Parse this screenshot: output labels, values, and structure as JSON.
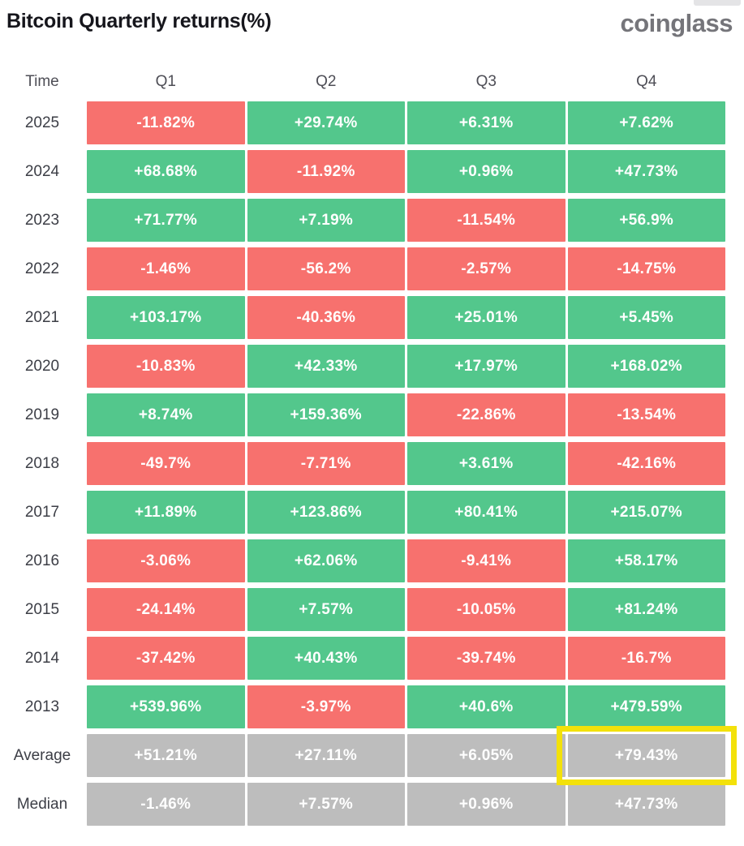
{
  "title": "Bitcoin Quarterly returns(%)",
  "logo_text": "coinglass",
  "colors": {
    "positive": "#53c78c",
    "negative": "#f7716e",
    "neutral": "#bdbdbd",
    "highlight": "#f3e10a",
    "title": "#16161c",
    "logo": "#75757a",
    "header_text": "#4e4e56",
    "label_text": "#3c3e46",
    "cell_text": "#ffffff"
  },
  "table": {
    "headers": [
      "Time",
      "Q1",
      "Q2",
      "Q3",
      "Q4"
    ],
    "rows": [
      {
        "label": "2025",
        "cells": [
          {
            "value": "-11.82%",
            "sign": "neg"
          },
          {
            "value": "+29.74%",
            "sign": "pos"
          },
          {
            "value": "+6.31%",
            "sign": "pos"
          },
          {
            "value": "+7.62%",
            "sign": "pos"
          }
        ]
      },
      {
        "label": "2024",
        "cells": [
          {
            "value": "+68.68%",
            "sign": "pos"
          },
          {
            "value": "-11.92%",
            "sign": "neg"
          },
          {
            "value": "+0.96%",
            "sign": "pos"
          },
          {
            "value": "+47.73%",
            "sign": "pos"
          }
        ]
      },
      {
        "label": "2023",
        "cells": [
          {
            "value": "+71.77%",
            "sign": "pos"
          },
          {
            "value": "+7.19%",
            "sign": "pos"
          },
          {
            "value": "-11.54%",
            "sign": "neg"
          },
          {
            "value": "+56.9%",
            "sign": "pos"
          }
        ]
      },
      {
        "label": "2022",
        "cells": [
          {
            "value": "-1.46%",
            "sign": "neg"
          },
          {
            "value": "-56.2%",
            "sign": "neg"
          },
          {
            "value": "-2.57%",
            "sign": "neg"
          },
          {
            "value": "-14.75%",
            "sign": "neg"
          }
        ]
      },
      {
        "label": "2021",
        "cells": [
          {
            "value": "+103.17%",
            "sign": "pos"
          },
          {
            "value": "-40.36%",
            "sign": "neg"
          },
          {
            "value": "+25.01%",
            "sign": "pos"
          },
          {
            "value": "+5.45%",
            "sign": "pos"
          }
        ]
      },
      {
        "label": "2020",
        "cells": [
          {
            "value": "-10.83%",
            "sign": "neg"
          },
          {
            "value": "+42.33%",
            "sign": "pos"
          },
          {
            "value": "+17.97%",
            "sign": "pos"
          },
          {
            "value": "+168.02%",
            "sign": "pos"
          }
        ]
      },
      {
        "label": "2019",
        "cells": [
          {
            "value": "+8.74%",
            "sign": "pos"
          },
          {
            "value": "+159.36%",
            "sign": "pos"
          },
          {
            "value": "-22.86%",
            "sign": "neg"
          },
          {
            "value": "-13.54%",
            "sign": "neg"
          }
        ]
      },
      {
        "label": "2018",
        "cells": [
          {
            "value": "-49.7%",
            "sign": "neg"
          },
          {
            "value": "-7.71%",
            "sign": "neg"
          },
          {
            "value": "+3.61%",
            "sign": "pos"
          },
          {
            "value": "-42.16%",
            "sign": "neg"
          }
        ]
      },
      {
        "label": "2017",
        "cells": [
          {
            "value": "+11.89%",
            "sign": "pos"
          },
          {
            "value": "+123.86%",
            "sign": "pos"
          },
          {
            "value": "+80.41%",
            "sign": "pos"
          },
          {
            "value": "+215.07%",
            "sign": "pos"
          }
        ]
      },
      {
        "label": "2016",
        "cells": [
          {
            "value": "-3.06%",
            "sign": "neg"
          },
          {
            "value": "+62.06%",
            "sign": "pos"
          },
          {
            "value": "-9.41%",
            "sign": "neg"
          },
          {
            "value": "+58.17%",
            "sign": "pos"
          }
        ]
      },
      {
        "label": "2015",
        "cells": [
          {
            "value": "-24.14%",
            "sign": "neg"
          },
          {
            "value": "+7.57%",
            "sign": "pos"
          },
          {
            "value": "-10.05%",
            "sign": "neg"
          },
          {
            "value": "+81.24%",
            "sign": "pos"
          }
        ]
      },
      {
        "label": "2014",
        "cells": [
          {
            "value": "-37.42%",
            "sign": "neg"
          },
          {
            "value": "+40.43%",
            "sign": "pos"
          },
          {
            "value": "-39.74%",
            "sign": "neg"
          },
          {
            "value": "-16.7%",
            "sign": "neg"
          }
        ]
      },
      {
        "label": "2013",
        "cells": [
          {
            "value": "+539.96%",
            "sign": "pos"
          },
          {
            "value": "-3.97%",
            "sign": "neg"
          },
          {
            "value": "+40.6%",
            "sign": "pos"
          },
          {
            "value": "+479.59%",
            "sign": "pos"
          }
        ]
      },
      {
        "label": "Average",
        "cells": [
          {
            "value": "+51.21%",
            "sign": "neutral"
          },
          {
            "value": "+27.11%",
            "sign": "neutral"
          },
          {
            "value": "+6.05%",
            "sign": "neutral"
          },
          {
            "value": "+79.43%",
            "sign": "neutral",
            "highlight": "true"
          }
        ]
      },
      {
        "label": "Median",
        "cells": [
          {
            "value": "-1.46%",
            "sign": "neutral"
          },
          {
            "value": "+7.57%",
            "sign": "neutral"
          },
          {
            "value": "+0.96%",
            "sign": "neutral"
          },
          {
            "value": "+47.73%",
            "sign": "neutral"
          }
        ]
      }
    ]
  },
  "chart_data": {
    "type": "heatmap",
    "title": "Bitcoin Quarterly returns(%)",
    "columns": [
      "Q1",
      "Q2",
      "Q3",
      "Q4"
    ],
    "rows": [
      "2025",
      "2024",
      "2023",
      "2022",
      "2021",
      "2020",
      "2019",
      "2018",
      "2017",
      "2016",
      "2015",
      "2014",
      "2013",
      "Average",
      "Median"
    ],
    "values": [
      [
        -11.82,
        29.74,
        6.31,
        7.62
      ],
      [
        68.68,
        -11.92,
        0.96,
        47.73
      ],
      [
        71.77,
        7.19,
        -11.54,
        56.9
      ],
      [
        -1.46,
        -56.2,
        -2.57,
        -14.75
      ],
      [
        103.17,
        -40.36,
        25.01,
        5.45
      ],
      [
        -10.83,
        42.33,
        17.97,
        168.02
      ],
      [
        8.74,
        159.36,
        -22.86,
        -13.54
      ],
      [
        -49.7,
        -7.71,
        3.61,
        -42.16
      ],
      [
        11.89,
        123.86,
        80.41,
        215.07
      ],
      [
        -3.06,
        62.06,
        -9.41,
        58.17
      ],
      [
        -24.14,
        7.57,
        -10.05,
        81.24
      ],
      [
        -37.42,
        40.43,
        -39.74,
        -16.7
      ],
      [
        539.96,
        -3.97,
        40.6,
        479.59
      ],
      [
        51.21,
        27.11,
        6.05,
        79.43
      ],
      [
        -1.46,
        7.57,
        0.96,
        47.73
      ]
    ],
    "unit": "%",
    "color_rule": "green = positive return, red = negative return, gray = Average/Median summary rows",
    "annotation": "Average Q4 cell (+79.43%) outlined with a yellow highlight box",
    "legend": "none",
    "source_logo": "coinglass"
  }
}
